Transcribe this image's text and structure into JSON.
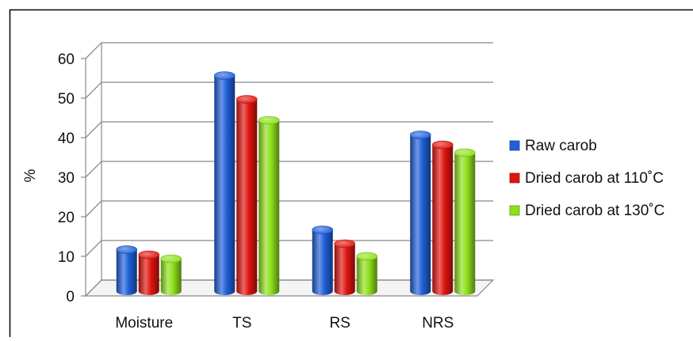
{
  "chart_data": {
    "type": "bar",
    "title": "",
    "xlabel": "",
    "ylabel": "%",
    "ylim": [
      0,
      60
    ],
    "yticks": [
      0,
      10,
      20,
      30,
      40,
      50,
      60
    ],
    "categories": [
      "Moisture",
      "TS",
      "RS",
      "NRS"
    ],
    "series": [
      {
        "name": "Raw carob",
        "color": "#1f5fd8",
        "values": [
          10.5,
          54.5,
          15.5,
          39.5
        ]
      },
      {
        "name": "Dried carob at 110˚C",
        "color": "#e0140e",
        "values": [
          9.2,
          48.5,
          12.0,
          37.0
        ]
      },
      {
        "name": "Dried carob at 130˚C",
        "color": "#8ee01c",
        "values": [
          8.2,
          43.2,
          8.8,
          35.0
        ]
      }
    ],
    "grid": true,
    "legend": "right",
    "style": "3d-cylinder"
  }
}
